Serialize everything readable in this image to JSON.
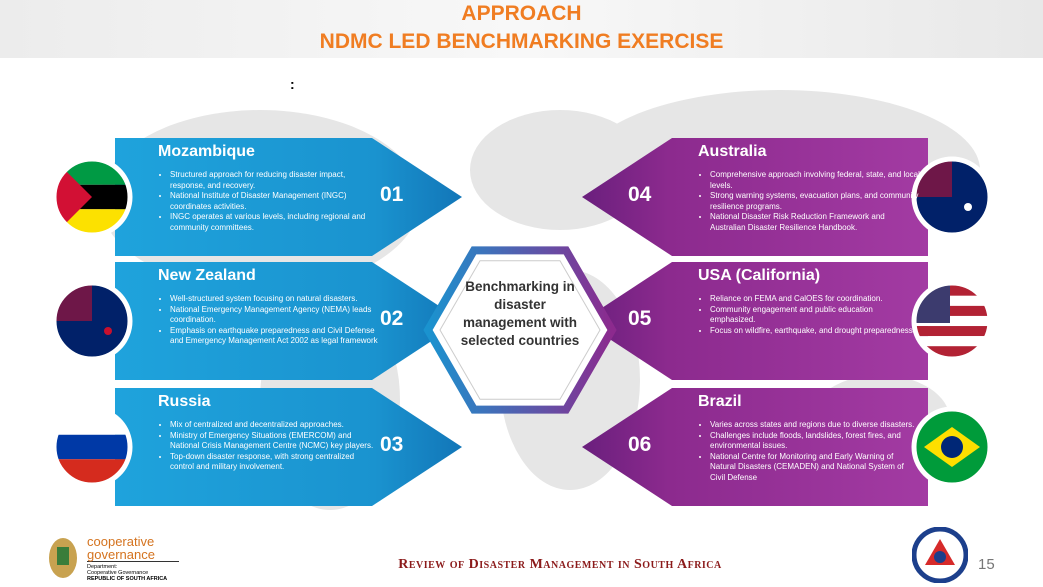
{
  "header": {
    "title": "APPROACH",
    "subtitle": "NDMC LED BENCHMARKING EXERCISE",
    "mark": ":"
  },
  "center": {
    "text": "Benchmarking in disaster management with selected countries"
  },
  "countries": [
    {
      "name": "Mozambique",
      "number": "01",
      "bullets": [
        "Structured approach for reducing disaster impact, response, and recovery.",
        "National Institute of Disaster Management (INGC) coordinates activities.",
        "INGC operates at various levels, including regional and community committees."
      ]
    },
    {
      "name": "New Zealand",
      "number": "02",
      "bullets": [
        "Well-structured system focusing on natural disasters.",
        "National Emergency Management Agency (NEMA) leads coordination.",
        "Emphasis on earthquake preparedness and Civil Defense and Emergency Management Act 2002 as legal framework"
      ]
    },
    {
      "name": "Russia",
      "number": "03",
      "bullets": [
        "Mix of centralized and decentralized approaches.",
        "Ministry of Emergency Situations (EMERCOM) and National Crisis Management Centre (NCMC) key players.",
        "Top-down disaster response, with strong centralized control and military involvement."
      ]
    },
    {
      "name": "Australia",
      "number": "04",
      "bullets": [
        "Comprehensive approach involving federal, state, and local levels.",
        "Strong warning systems, evacuation plans, and community resilience programs.",
        "National Disaster Risk Reduction Framework and Australian Disaster Resilience Handbook."
      ]
    },
    {
      "name": "USA (California)",
      "number": "05",
      "bullets": [
        "Reliance on FEMA and CalOES for coordination.",
        "Community engagement and public education emphasized.",
        "Focus on wildfire, earthquake, and drought preparedness."
      ]
    },
    {
      "name": "Brazil",
      "number": "06",
      "bullets": [
        "Varies across states and regions due to diverse disasters.",
        "Challenges include floods, landslides, forest fires, and environmental issues.",
        "National Centre for Monitoring and Early Warning of Natural Disasters (CEMADEN) and National System of Civil Defense"
      ]
    }
  ],
  "footer": {
    "logo_line1": "cooperative",
    "logo_line2": "governance",
    "dept1": "Department:",
    "dept2": "Cooperative Governance",
    "dept3": "REPUBLIC OF SOUTH AFRICA",
    "title": "Review of Disaster Management in South Africa",
    "page": "15"
  }
}
